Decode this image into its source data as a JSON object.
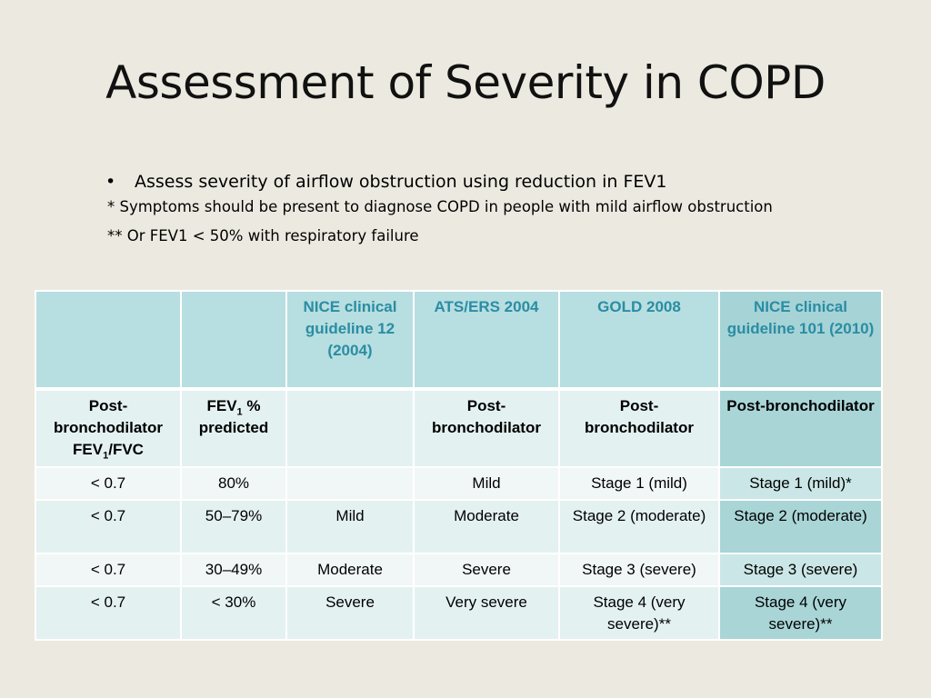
{
  "title": "Assessment of Severity in COPD",
  "bullets": {
    "main": "Assess severity of airflow obstruction using reduction in FEV1",
    "bullet_char": "•",
    "note1": "* Symptoms should be present to diagnose COPD in people with mild airflow obstruction",
    "note2": "** Or FEV1 < 50% with respiratory failure"
  },
  "table": {
    "headers": [
      "",
      "",
      "NICE clinical guideline 12 (2004)",
      "ATS/ERS 2004",
      "GOLD 2008",
      "NICE clinical guideline 101 (2010)"
    ],
    "subheader": {
      "col1_prefix": "Post-bronchodilator FEV",
      "col1_sub": "1",
      "col1_suffix": "/FVC",
      "col2_prefix": "FEV",
      "col2_sub": "1",
      "col2_suffix": " % predicted",
      "col3": "",
      "col4": "Post-bronchodilator",
      "col5": "Post-bronchodilator",
      "col6": "Post-bronchodilator"
    },
    "rows": [
      [
        "< 0.7",
        "80%",
        "",
        "Mild",
        "Stage 1 (mild)",
        "Stage 1 (mild)*"
      ],
      [
        "< 0.7",
        "50–79%",
        "Mild",
        "Moderate",
        "Stage 2 (moderate)",
        "Stage 2 (moderate)"
      ],
      [
        "< 0.7",
        "30–49%",
        "Moderate",
        "Severe",
        "Stage 3 (severe)",
        "Stage 3 (severe)"
      ],
      [
        "< 0.7",
        "< 30%",
        "Severe",
        "Very severe",
        "Stage 4 (very severe)**",
        "Stage 4 (very severe)**"
      ]
    ]
  },
  "colors": {
    "background": "#eceae0",
    "header_bg": "#b7dee0",
    "header_text": "#2a8da3",
    "highlight_col": "#a9d5d7"
  }
}
